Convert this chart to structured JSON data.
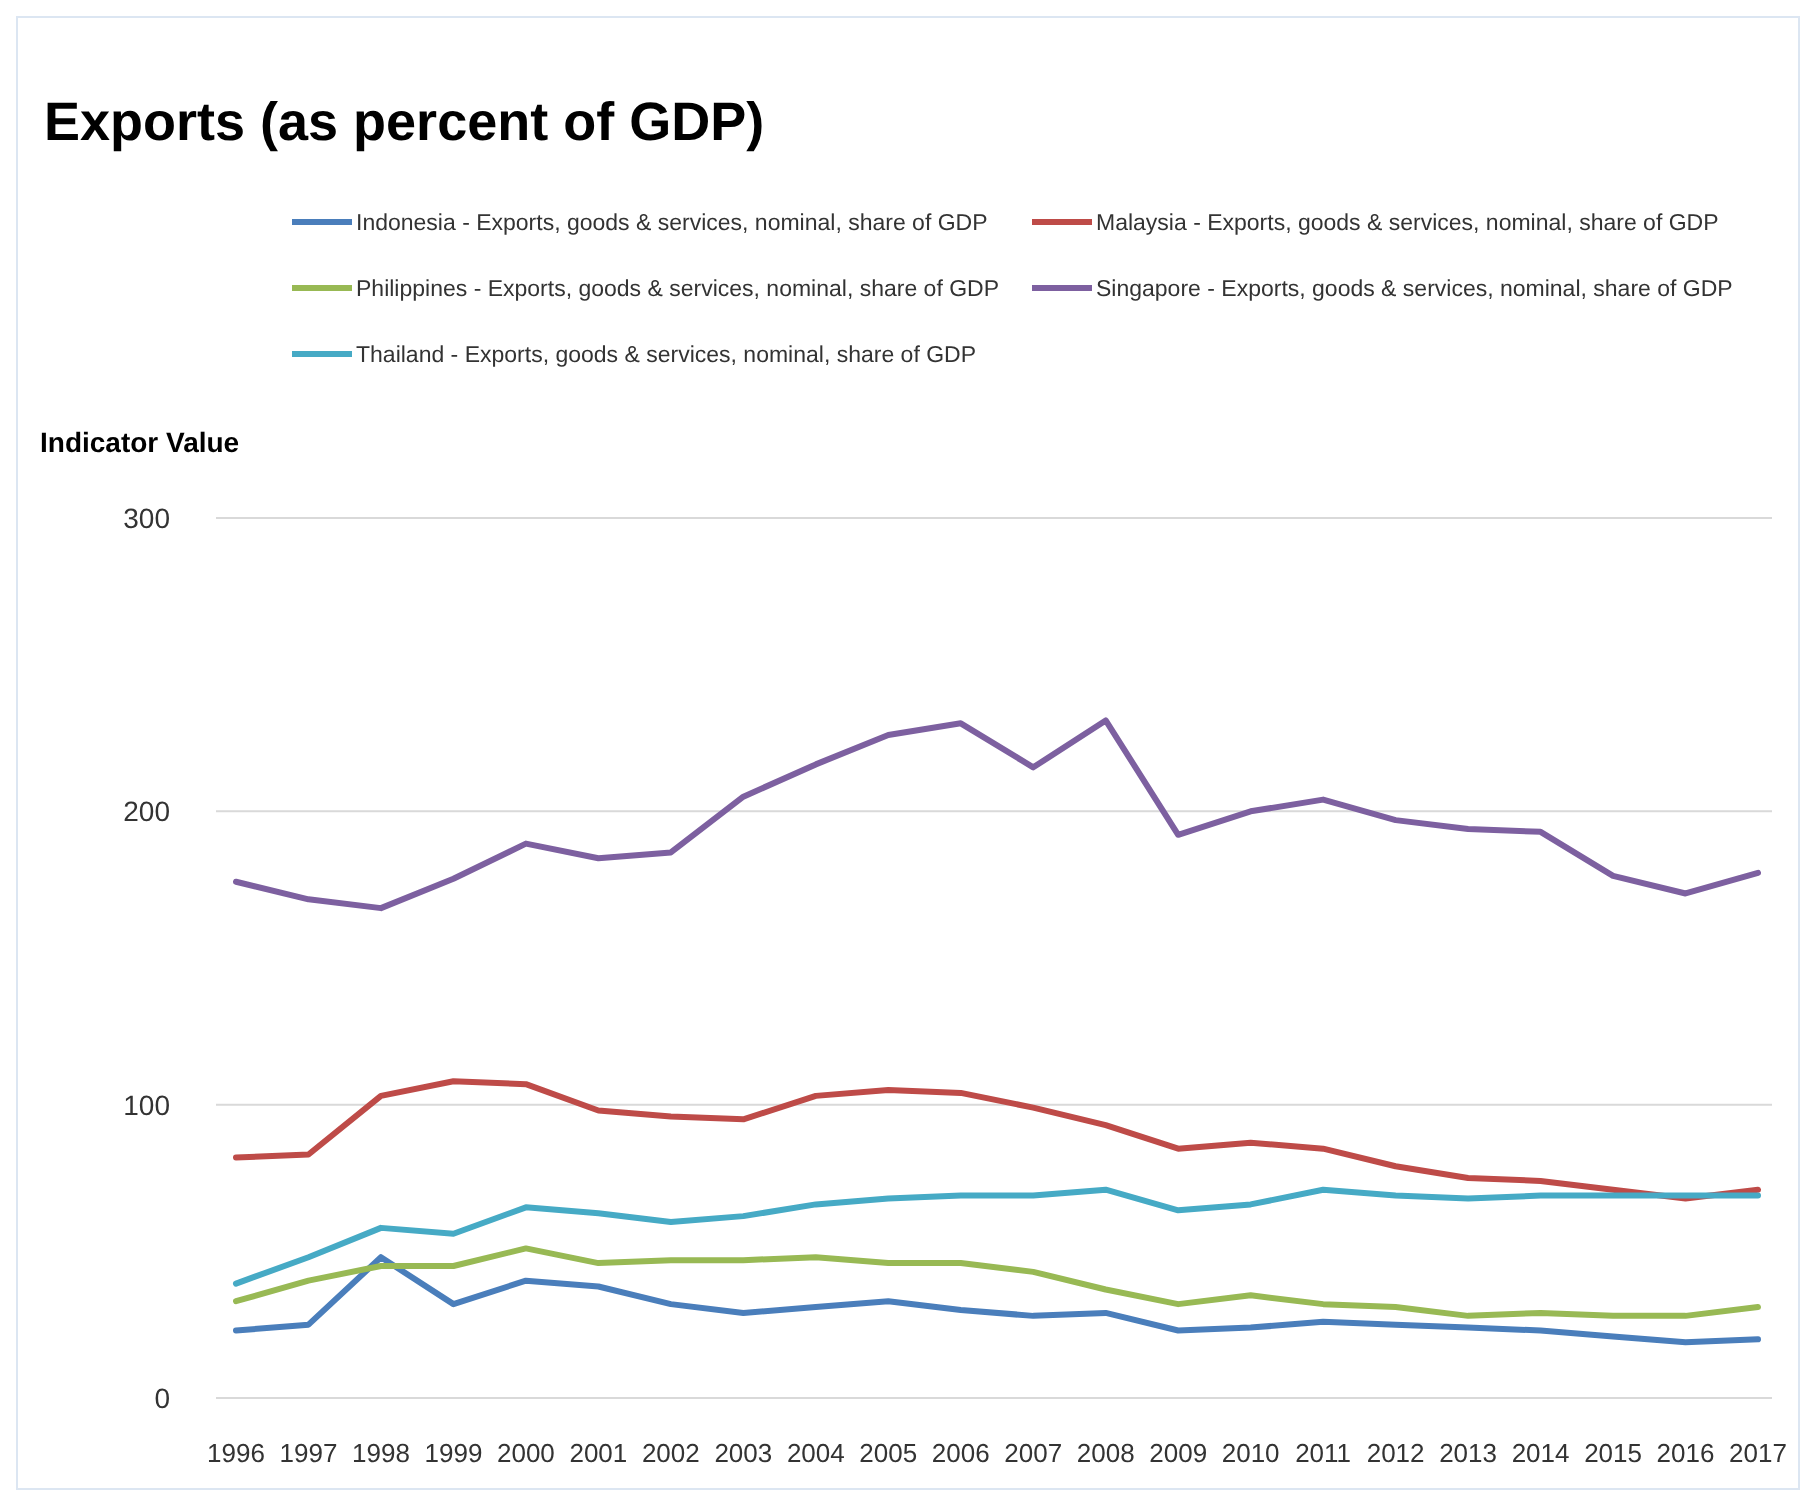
{
  "chart_data": {
    "type": "line",
    "title": "Exports (as percent of GDP)",
    "ylabel": "Indicator Value",
    "categories": [
      "1996",
      "1997",
      "1998",
      "1999",
      "2000",
      "2001",
      "2002",
      "2003",
      "2004",
      "2005",
      "2006",
      "2007",
      "2008",
      "2009",
      "2010",
      "2011",
      "2012",
      "2013",
      "2014",
      "2015",
      "2016",
      "2017"
    ],
    "series": [
      {
        "name": "Indonesia - Exports, goods & services, nominal, share of GDP",
        "color": "#4a7ebb",
        "values": [
          23,
          25,
          48,
          32,
          40,
          38,
          32,
          29,
          31,
          33,
          30,
          28,
          29,
          23,
          24,
          26,
          25,
          24,
          23,
          21,
          19,
          20
        ]
      },
      {
        "name": "Malaysia - Exports, goods & services, nominal, share of GDP",
        "color": "#be4b48",
        "values": [
          82,
          83,
          103,
          108,
          107,
          98,
          96,
          95,
          103,
          105,
          104,
          99,
          93,
          85,
          87,
          85,
          79,
          75,
          74,
          71,
          68,
          71
        ]
      },
      {
        "name": "Philippines - Exports, goods & services, nominal, share of GDP",
        "color": "#98b954",
        "values": [
          33,
          40,
          45,
          45,
          51,
          46,
          47,
          47,
          48,
          46,
          46,
          43,
          37,
          32,
          35,
          32,
          31,
          28,
          29,
          28,
          28,
          31
        ]
      },
      {
        "name": "Singapore - Exports, goods & services, nominal, share of GDP",
        "color": "#7d60a0",
        "values": [
          176,
          170,
          167,
          177,
          189,
          184,
          186,
          205,
          216,
          226,
          230,
          215,
          231,
          192,
          200,
          204,
          197,
          194,
          193,
          178,
          172,
          179
        ]
      },
      {
        "name": "Thailand - Exports, goods & services, nominal, share of GDP",
        "color": "#46aac5",
        "values": [
          39,
          48,
          58,
          56,
          65,
          63,
          60,
          62,
          66,
          68,
          69,
          69,
          71,
          64,
          66,
          71,
          69,
          68,
          69,
          69,
          69,
          69
        ]
      }
    ],
    "ylim": [
      0,
      300
    ],
    "yticks": [
      0,
      100,
      200,
      300
    ],
    "grid": "y",
    "legend": "top",
    "marker": "none",
    "line_style": "solid"
  }
}
